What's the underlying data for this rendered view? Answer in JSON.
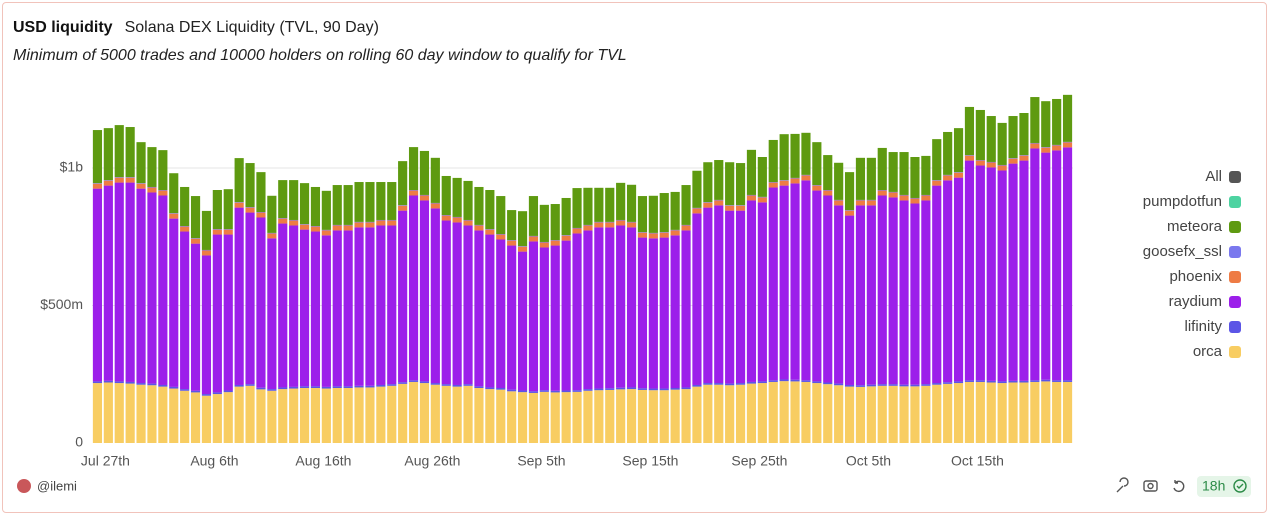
{
  "header": {
    "title": "USD liquidity",
    "query": "Solana DEX Liquidity (TVL, 90 Day)",
    "subtitle": "Minimum of 5000 trades and 10000 holders on rolling 60 day window to qualify for TVL"
  },
  "footer": {
    "author": "@ilemi",
    "age": "18h"
  },
  "chart_data": {
    "type": "stacked_bar",
    "legend_all": "All",
    "legend": "right",
    "grid": true,
    "ylim": [
      0,
      1300000000
    ],
    "yticks": [
      0,
      {
        "value": 500000000,
        "label": "$500m"
      },
      {
        "value": 1000000000,
        "label": "$1b"
      }
    ],
    "categories": [
      "Jul 27th",
      null,
      null,
      null,
      null,
      null,
      null,
      null,
      null,
      null,
      "Aug 6th",
      null,
      null,
      null,
      null,
      null,
      null,
      null,
      null,
      null,
      "Aug 16th",
      null,
      null,
      null,
      null,
      null,
      null,
      null,
      null,
      null,
      "Aug 26th",
      null,
      null,
      null,
      null,
      null,
      null,
      null,
      null,
      null,
      "Sep 5th",
      null,
      null,
      null,
      null,
      null,
      null,
      null,
      null,
      null,
      "Sep 15th",
      null,
      null,
      null,
      null,
      null,
      null,
      null,
      null,
      null,
      "Sep 25th",
      null,
      null,
      null,
      null,
      null,
      null,
      null,
      null,
      null,
      "Oct 5th",
      null,
      null,
      null,
      null,
      null,
      null,
      null,
      null,
      null,
      "Oct 15th",
      null,
      null,
      null,
      null,
      null,
      null,
      null,
      null,
      null
    ],
    "series": [
      {
        "name": "orca",
        "color": "#f8cd62",
        "values": [
          218000000,
          220000000,
          218000000,
          216000000,
          212000000,
          210000000,
          205000000,
          198000000,
          190000000,
          184000000,
          172000000,
          178000000,
          185000000,
          205000000,
          208000000,
          195000000,
          190000000,
          196000000,
          198000000,
          200000000,
          200000000,
          198000000,
          200000000,
          200000000,
          202000000,
          202000000,
          205000000,
          208000000,
          215000000,
          222000000,
          218000000,
          212000000,
          208000000,
          205000000,
          208000000,
          200000000,
          196000000,
          194000000,
          188000000,
          185000000,
          182000000,
          186000000,
          184000000,
          185000000,
          186000000,
          190000000,
          192000000,
          193000000,
          195000000,
          196000000,
          193000000,
          192000000,
          192000000,
          194000000,
          196000000,
          205000000,
          212000000,
          212000000,
          210000000,
          212000000,
          216000000,
          218000000,
          222000000,
          225000000,
          224000000,
          222000000,
          218000000,
          214000000,
          210000000,
          205000000,
          204000000,
          206000000,
          208000000,
          208000000,
          206000000,
          206000000,
          208000000,
          212000000,
          215000000,
          218000000,
          222000000,
          222000000,
          220000000,
          218000000,
          220000000,
          220000000,
          222000000,
          224000000,
          222000000,
          222000000
        ]
      },
      {
        "name": "lifinity",
        "color": "#5b55e6",
        "values": [
          6000000,
          6000000,
          6000000,
          6000000,
          6000000,
          6000000,
          6000000,
          6000000,
          6000000,
          6000000,
          6000000,
          6000000,
          6000000,
          6000000,
          6000000,
          6000000,
          6000000,
          6000000,
          6000000,
          6000000,
          6000000,
          6000000,
          6000000,
          6000000,
          6000000,
          6000000,
          6000000,
          6000000,
          6000000,
          6000000,
          6000000,
          6000000,
          6000000,
          6000000,
          6000000,
          6000000,
          6000000,
          6000000,
          6000000,
          6000000,
          6000000,
          6000000,
          6000000,
          6000000,
          6000000,
          6000000,
          6000000,
          6000000,
          6000000,
          6000000,
          6000000,
          6000000,
          6000000,
          6000000,
          6000000,
          6000000,
          6000000,
          6000000,
          6000000,
          6000000,
          6000000,
          6000000,
          6000000,
          6000000,
          6000000,
          6000000,
          6000000,
          6000000,
          6000000,
          6000000,
          6000000,
          6000000,
          6000000,
          6000000,
          6000000,
          6000000,
          6000000,
          6000000,
          6000000,
          6000000,
          6000000,
          6000000,
          6000000,
          6000000,
          6000000,
          6000000,
          6000000,
          6000000,
          6000000,
          6000000
        ]
      },
      {
        "name": "raydium",
        "color": "#9c1fea",
        "values": [
          701000000,
          710000000,
          723000000,
          725000000,
          707000000,
          695000000,
          689000000,
          612000000,
          573000000,
          535000000,
          504000000,
          574000000,
          567000000,
          645000000,
          624000000,
          619000000,
          548000000,
          596000000,
          587000000,
          570000000,
          563000000,
          551000000,
          567000000,
          567000000,
          576000000,
          576000000,
          580000000,
          577000000,
          624000000,
          672000000,
          658000000,
          635000000,
          595000000,
          591000000,
          577000000,
          567000000,
          556000000,
          540000000,
          524000000,
          505000000,
          545000000,
          519000000,
          528000000,
          545000000,
          570000000,
          577000000,
          586000000,
          585000000,
          590000000,
          582000000,
          548000000,
          546000000,
          549000000,
          555000000,
          571000000,
          624000000,
          638000000,
          646000000,
          629000000,
          627000000,
          660000000,
          651000000,
          701000000,
          705000000,
          714000000,
          727000000,
          694000000,
          680000000,
          648000000,
          616000000,
          654000000,
          652000000,
          686000000,
          679000000,
          670000000,
          659000000,
          668000000,
          718000000,
          734000000,
          741000000,
          799000000,
          781000000,
          776000000,
          767000000,
          790000000,
          801000000,
          843000000,
          826000000,
          836000000,
          847000000
        ]
      },
      {
        "name": "phoenix",
        "color": "#ee7b44",
        "values": [
          18000000,
          18000000,
          18000000,
          18000000,
          18000000,
          18000000,
          18000000,
          18000000,
          18000000,
          18000000,
          18000000,
          18000000,
          18000000,
          18000000,
          18000000,
          18000000,
          18000000,
          18000000,
          18000000,
          18000000,
          18000000,
          18000000,
          18000000,
          18000000,
          18000000,
          18000000,
          18000000,
          18000000,
          18000000,
          18000000,
          18000000,
          18000000,
          18000000,
          18000000,
          18000000,
          18000000,
          18000000,
          18000000,
          18000000,
          18000000,
          18000000,
          18000000,
          18000000,
          18000000,
          18000000,
          18000000,
          18000000,
          18000000,
          18000000,
          18000000,
          18000000,
          18000000,
          18000000,
          18000000,
          18000000,
          18000000,
          18000000,
          18000000,
          18000000,
          18000000,
          18000000,
          18000000,
          18000000,
          18000000,
          18000000,
          18000000,
          18000000,
          18000000,
          18000000,
          18000000,
          18000000,
          18000000,
          18000000,
          18000000,
          18000000,
          18000000,
          18000000,
          18000000,
          18000000,
          18000000,
          18000000,
          18000000,
          18000000,
          18000000,
          18000000,
          18000000,
          18000000,
          18000000,
          18000000,
          18000000
        ]
      },
      {
        "name": "goosefx_ssl",
        "color": "#7a78ee",
        "values": [
          2000000,
          2000000,
          2000000,
          2000000,
          2000000,
          2000000,
          2000000,
          2000000,
          2000000,
          2000000,
          2000000,
          2000000,
          2000000,
          2000000,
          2000000,
          2000000,
          2000000,
          2000000,
          2000000,
          2000000,
          2000000,
          2000000,
          2000000,
          2000000,
          2000000,
          2000000,
          2000000,
          2000000,
          2000000,
          2000000,
          2000000,
          2000000,
          2000000,
          2000000,
          2000000,
          2000000,
          2000000,
          2000000,
          2000000,
          2000000,
          2000000,
          2000000,
          2000000,
          2000000,
          2000000,
          2000000,
          2000000,
          2000000,
          2000000,
          2000000,
          2000000,
          2000000,
          2000000,
          2000000,
          2000000,
          2000000,
          2000000,
          2000000,
          2000000,
          2000000,
          2000000,
          2000000,
          2000000,
          2000000,
          2000000,
          2000000,
          2000000,
          2000000,
          2000000,
          2000000,
          2000000,
          2000000,
          2000000,
          2000000,
          2000000,
          2000000,
          2000000,
          2000000,
          2000000,
          2000000,
          2000000,
          2000000,
          2000000,
          2000000,
          2000000,
          2000000,
          2000000,
          2000000,
          2000000,
          2000000
        ]
      },
      {
        "name": "meteora",
        "color": "#5e9a10",
        "values": [
          193000000,
          189000000,
          189000000,
          182000000,
          149000000,
          145000000,
          145000000,
          145000000,
          142000000,
          153000000,
          142000000,
          142000000,
          145000000,
          160000000,
          160000000,
          145000000,
          135000000,
          138000000,
          145000000,
          149000000,
          142000000,
          142000000,
          145000000,
          145000000,
          145000000,
          145000000,
          138000000,
          138000000,
          160000000,
          156000000,
          160000000,
          164000000,
          142000000,
          142000000,
          142000000,
          138000000,
          142000000,
          138000000,
          109000000,
          127000000,
          145000000,
          135000000,
          131000000,
          135000000,
          145000000,
          135000000,
          124000000,
          124000000,
          135000000,
          135000000,
          131000000,
          135000000,
          142000000,
          138000000,
          145000000,
          135000000,
          145000000,
          145000000,
          156000000,
          153000000,
          164000000,
          145000000,
          153000000,
          167000000,
          160000000,
          153000000,
          156000000,
          127000000,
          135000000,
          138000000,
          153000000,
          153000000,
          153000000,
          145000000,
          156000000,
          149000000,
          142000000,
          149000000,
          156000000,
          160000000,
          175000000,
          182000000,
          167000000,
          153000000,
          153000000,
          153000000,
          167000000,
          167000000,
          167000000,
          171000000
        ]
      },
      {
        "name": "pumpdotfun",
        "color": "#4dd3a1",
        "values": [
          0,
          0,
          0,
          0,
          0,
          0,
          0,
          0,
          0,
          0,
          0,
          0,
          0,
          0,
          0,
          0,
          0,
          0,
          0,
          0,
          0,
          0,
          0,
          0,
          0,
          0,
          0,
          0,
          0,
          0,
          0,
          0,
          0,
          0,
          0,
          0,
          0,
          0,
          0,
          0,
          0,
          0,
          0,
          0,
          0,
          0,
          0,
          0,
          0,
          0,
          0,
          0,
          0,
          0,
          0,
          0,
          0,
          0,
          0,
          0,
          0,
          0,
          0,
          0,
          0,
          0,
          0,
          0,
          0,
          0,
          0,
          0,
          0,
          0,
          0,
          0,
          0,
          0,
          0,
          0,
          0,
          0,
          0,
          0,
          0,
          0,
          0,
          0,
          0,
          0
        ]
      }
    ]
  }
}
